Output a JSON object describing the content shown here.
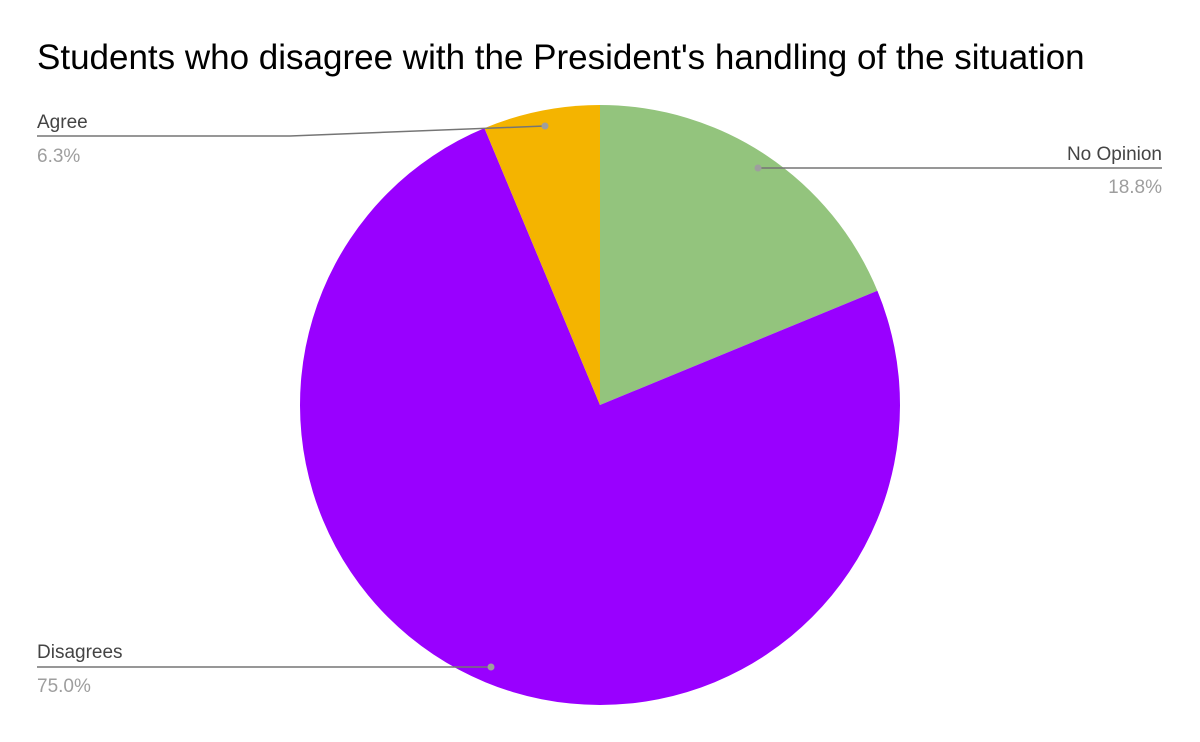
{
  "chart_data": {
    "type": "pie",
    "title": "Students who disagree with the President's handling of the situation",
    "slices": [
      {
        "label": "No Opinion",
        "value": 18.8,
        "display": "18.8%",
        "color": "#93c47d"
      },
      {
        "label": "Disagrees",
        "value": 75.0,
        "display": "75.0%",
        "color": "#9900ff"
      },
      {
        "label": "Agree",
        "value": 6.3,
        "display": "6.3%",
        "color": "#f4b400"
      }
    ],
    "start_angle_deg": 0,
    "direction": "clockwise",
    "legend": "none",
    "label_style": "callouts"
  }
}
